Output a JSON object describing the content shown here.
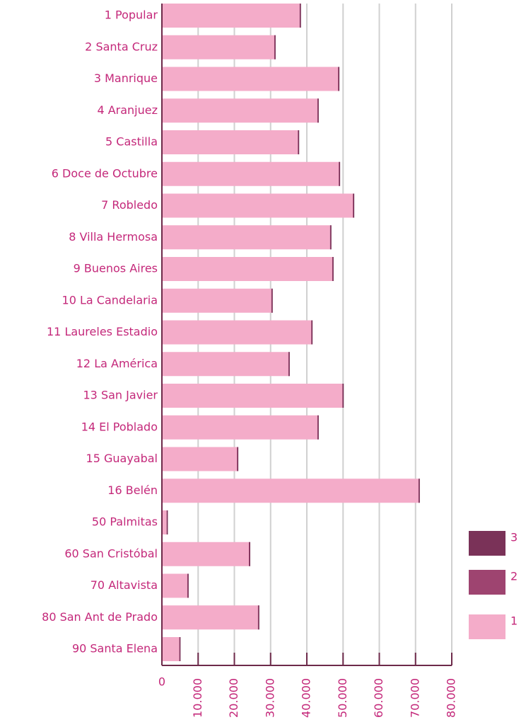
{
  "chart_data": {
    "type": "stacked-barh",
    "categories": [
      "1 Popular",
      "2 Santa Cruz",
      "3 Manrique",
      "4 Aranjuez",
      "5 Castilla",
      "6 Doce de Octubre",
      "7 Robledo",
      "8 Villa Hermosa",
      "9 Buenos Aires",
      "10 La Candelaria",
      "11 Laureles Estadio",
      "12 La América",
      "13 San Javier",
      "14 El Poblado",
      "15 Guayabal",
      "16 Belén",
      "50 Palmitas",
      "60 San Cristóbal",
      "70 Altavista",
      "80 San Ant de Prado",
      "90 Santa Elena"
    ],
    "series": [
      {
        "name": "1",
        "color": "#f4acc9",
        "values": [
          38000,
          31000,
          48600,
          42900,
          37500,
          48800,
          52700,
          46400,
          47000,
          30200,
          41200,
          34900,
          49800,
          42900,
          20700,
          70800,
          1300,
          24000,
          7000,
          26500,
          4800
        ]
      },
      {
        "name": "2",
        "color": "#9e4470",
        "values": [
          100,
          100,
          100,
          100,
          100,
          100,
          100,
          100,
          100,
          100,
          100,
          100,
          100,
          100,
          100,
          100,
          50,
          100,
          100,
          100,
          50
        ]
      },
      {
        "name": "3",
        "color": "#7a3258",
        "values": [
          100,
          100,
          100,
          100,
          100,
          100,
          100,
          100,
          100,
          100,
          100,
          100,
          100,
          100,
          100,
          100,
          50,
          100,
          100,
          100,
          50
        ]
      }
    ],
    "xlim": [
      0,
      80000
    ],
    "xticks": [
      0,
      {
        "value": 10000,
        "label": "10.000"
      },
      {
        "value": 20000,
        "label": "20.000"
      },
      {
        "value": 30000,
        "label": "30.000"
      },
      {
        "value": 40000,
        "label": "40.000"
      },
      {
        "value": 50000,
        "label": "50.000"
      },
      {
        "value": 60000,
        "label": "60.000"
      },
      {
        "value": 70000,
        "label": "70.000"
      },
      {
        "value": 80000,
        "label": "80.000"
      }
    ],
    "grid": true
  }
}
